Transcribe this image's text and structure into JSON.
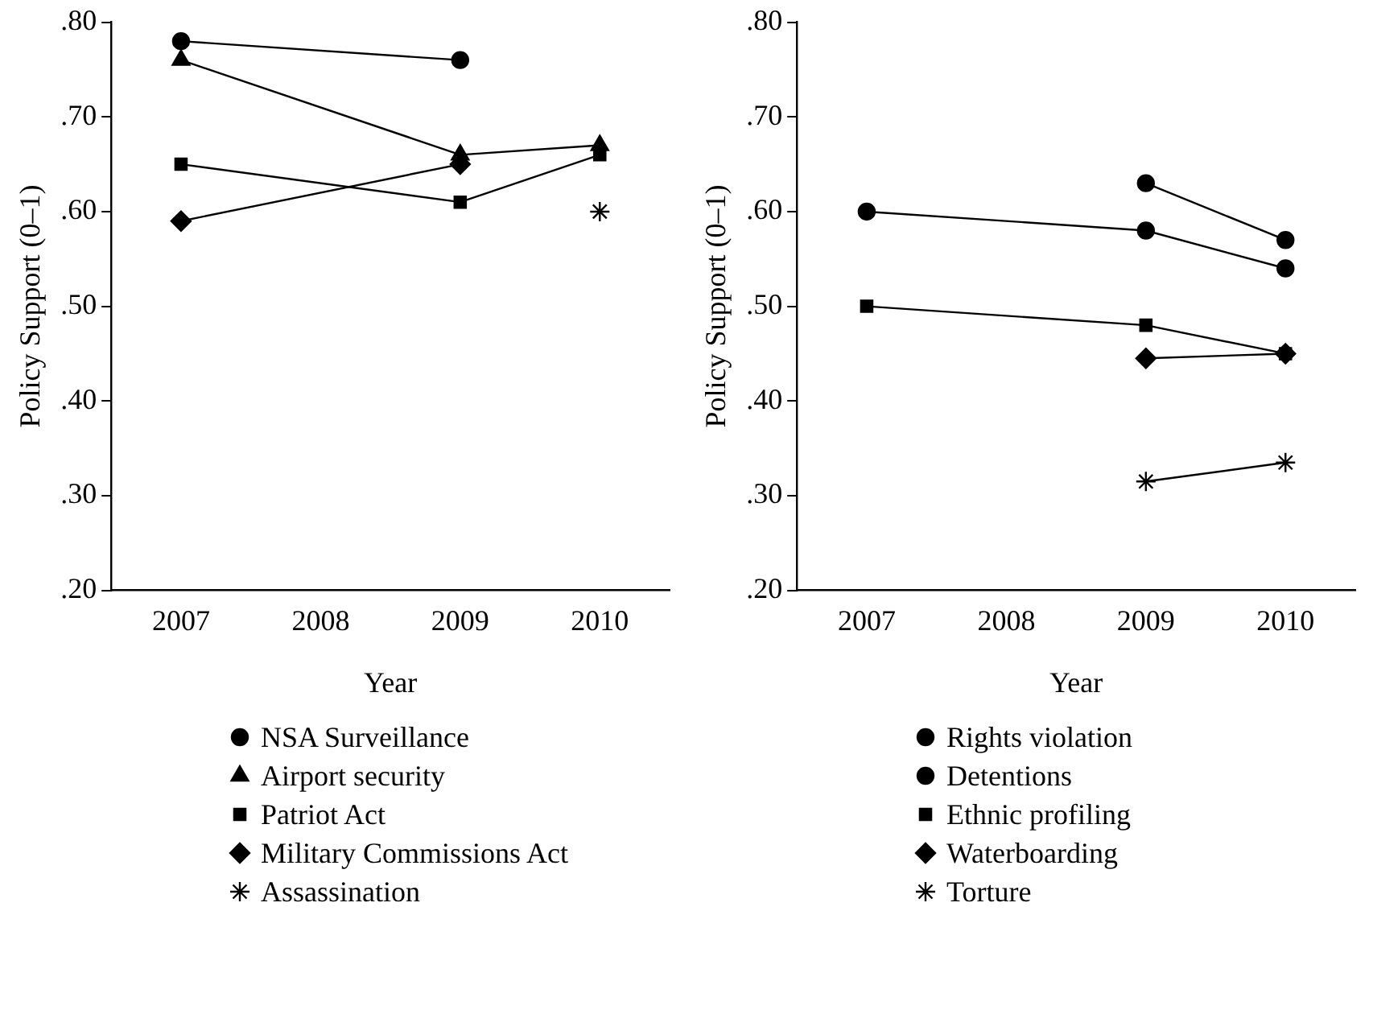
{
  "chart_data": [
    {
      "type": "line",
      "xlabel": "Year",
      "ylabel": "Policy Support (0–1)",
      "categories": [
        "2007",
        "2008",
        "2009",
        "2010"
      ],
      "ylim": [
        0.2,
        0.8
      ],
      "yticks": [
        {
          "value": 0.2,
          "label": ".20"
        },
        {
          "value": 0.3,
          "label": ".30"
        },
        {
          "value": 0.4,
          "label": ".40"
        },
        {
          "value": 0.5,
          "label": ".50"
        },
        {
          "value": 0.6,
          "label": ".60"
        },
        {
          "value": 0.7,
          "label": ".70"
        },
        {
          "value": 0.8,
          "label": ".80"
        }
      ],
      "legend": "bottom",
      "series": [
        {
          "name": "NSA Surveillance",
          "color": "#000000",
          "marker": "circle",
          "values": [
            0.78,
            null,
            0.76,
            null
          ]
        },
        {
          "name": "Airport security",
          "color": "#000000",
          "marker": "triangle",
          "values": [
            0.76,
            null,
            0.66,
            0.67
          ]
        },
        {
          "name": "Patriot Act",
          "color": "#000000",
          "marker": "square",
          "values": [
            0.65,
            null,
            0.61,
            0.66
          ]
        },
        {
          "name": "Military Commissions Act",
          "color": "#000000",
          "marker": "diamond",
          "values": [
            0.59,
            null,
            0.65,
            null
          ]
        },
        {
          "name": "Assassination",
          "color": "#000000",
          "marker": "cross",
          "values": [
            null,
            null,
            null,
            0.6
          ]
        }
      ]
    },
    {
      "type": "line",
      "xlabel": "Year",
      "ylabel": "Policy Support (0–1)",
      "categories": [
        "2007",
        "2008",
        "2009",
        "2010"
      ],
      "ylim": [
        0.2,
        0.8
      ],
      "yticks": [
        {
          "value": 0.2,
          "label": ".20"
        },
        {
          "value": 0.3,
          "label": ".30"
        },
        {
          "value": 0.4,
          "label": ".40"
        },
        {
          "value": 0.5,
          "label": ".50"
        },
        {
          "value": 0.6,
          "label": ".60"
        },
        {
          "value": 0.7,
          "label": ".70"
        },
        {
          "value": 0.8,
          "label": ".80"
        }
      ],
      "legend": "bottom",
      "series": [
        {
          "name": "Rights violation",
          "color": "#000000",
          "marker": "circle",
          "values": [
            null,
            null,
            0.63,
            0.57
          ]
        },
        {
          "name": "Detentions",
          "color": "#000000",
          "marker": "circle",
          "values": [
            0.6,
            null,
            0.58,
            0.54
          ]
        },
        {
          "name": "Ethnic profiling",
          "color": "#000000",
          "marker": "square",
          "values": [
            0.5,
            null,
            0.48,
            0.45
          ]
        },
        {
          "name": "Waterboarding",
          "color": "#000000",
          "marker": "diamond",
          "values": [
            null,
            null,
            0.445,
            0.45
          ]
        },
        {
          "name": "Torture",
          "color": "#000000",
          "marker": "cross",
          "values": [
            null,
            null,
            0.315,
            0.335
          ]
        }
      ]
    }
  ]
}
